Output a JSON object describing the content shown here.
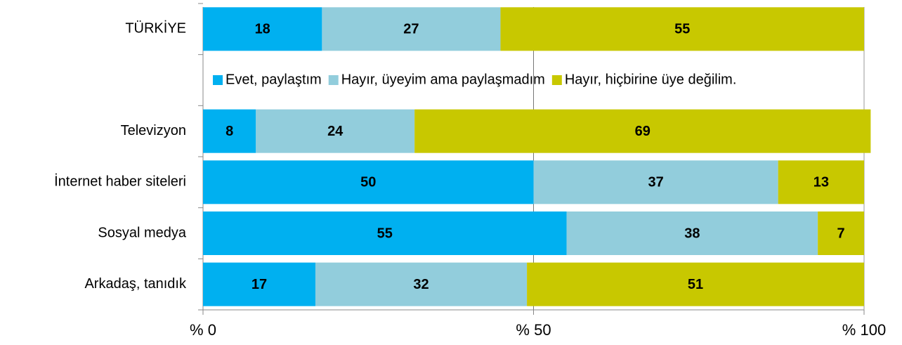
{
  "chart_data": {
    "type": "stacked_bar_horizontal",
    "categories": [
      "TÜRKİYE",
      null,
      "Televizyon",
      "İnternet haber siteleri",
      "Sosyal medya",
      "Arkadaş, tanıdık"
    ],
    "series": [
      {
        "name": "Evet, paylaştım",
        "color": "#00b0f0",
        "values": [
          18,
          null,
          8,
          50,
          55,
          17
        ]
      },
      {
        "name": "Hayır, üyeyim ama paylaşmadım",
        "color": "#92cddc",
        "values": [
          27,
          null,
          24,
          37,
          38,
          32
        ]
      },
      {
        "name": "Hayır, hiçbirine üye değilim.",
        "color": "#c8c800",
        "values": [
          55,
          null,
          69,
          13,
          7,
          51
        ]
      }
    ],
    "xlim": [
      0,
      100
    ],
    "xticks": [
      {
        "value": 0,
        "label": "% 0"
      },
      {
        "value": 50,
        "label": "% 50"
      },
      {
        "value": 100,
        "label": "% 100"
      }
    ],
    "grid": true
  }
}
